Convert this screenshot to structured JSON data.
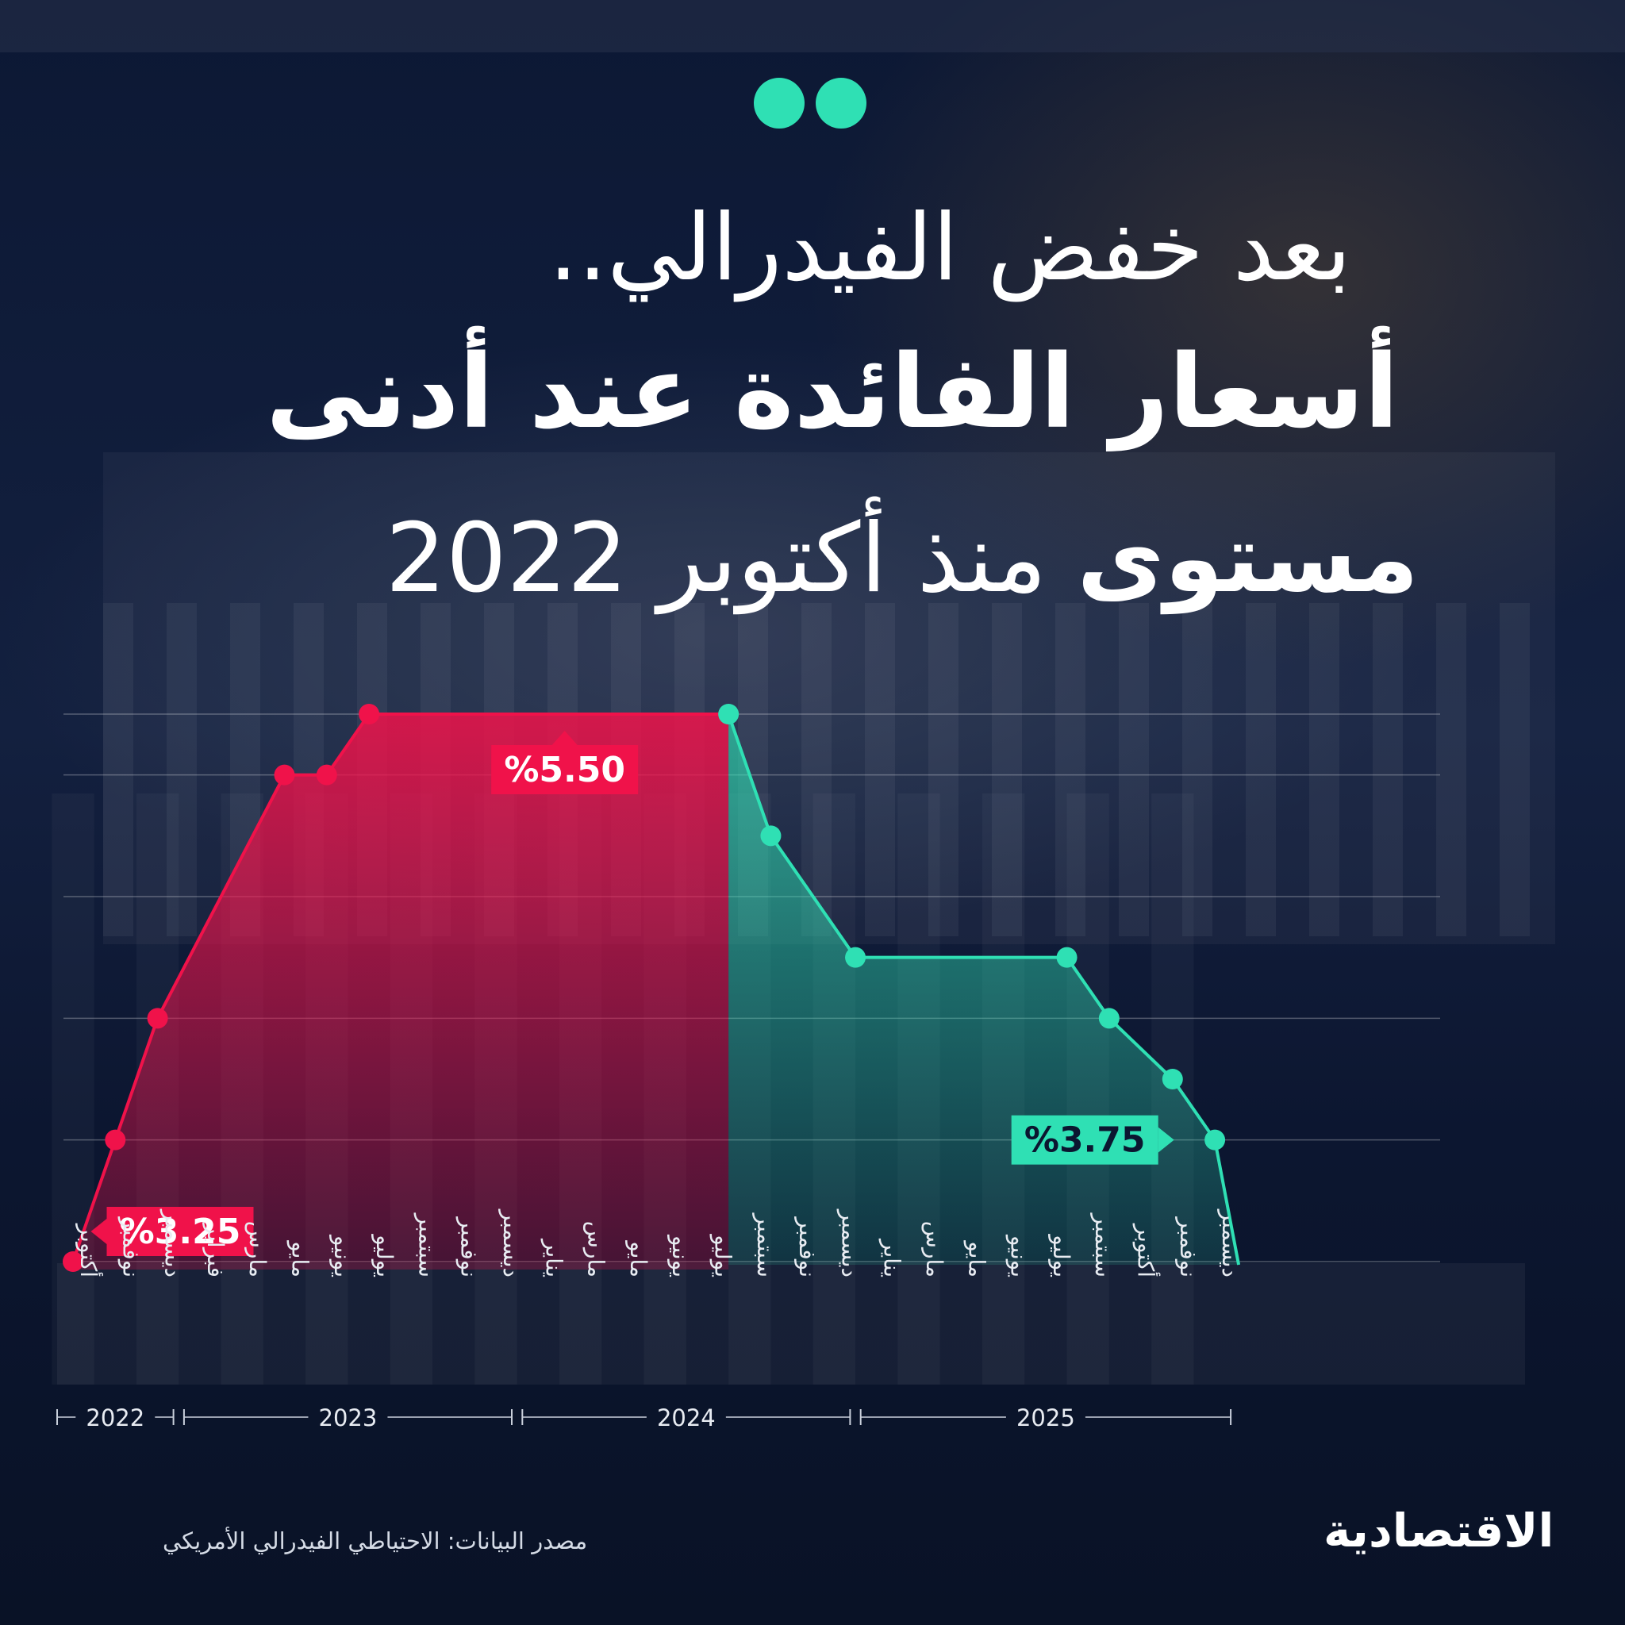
{
  "title": {
    "line1": "بعد خفض الفيدرالي..",
    "line2": "أسعار الفائدة عند أدنى",
    "line3_bold": "مستوى",
    "line3_rest": "منذ أكتوبر 2022"
  },
  "source": "مصدر البيانات: الاحتياطي الفيدرالي الأمريكي",
  "brand": "الاقتصادية",
  "colors": {
    "rise": "#f0124a",
    "fall": "#2fe0b4",
    "background": "#0b1630",
    "text": "#ffffff"
  },
  "chart_data": {
    "type": "area",
    "ylim": [
      3.25,
      5.5
    ],
    "grid": true,
    "months": [
      "أكتوبر",
      "نوفمبر",
      "ديسمبر",
      "فبراير",
      "مارس",
      "مايو",
      "يونيو",
      "يوليو",
      "سبتمبر",
      "نوفمبر",
      "ديسمبر",
      "يناير",
      "مارس",
      "مايو",
      "يونيو",
      "يوليو",
      "سبتمبر",
      "نوفمبر",
      "ديسمبر",
      "يناير",
      "مارس",
      "مايو",
      "يونيو",
      "يوليو",
      "سبتمبر",
      "أكتوبر",
      "نوفمبر",
      "ديسمبر"
    ],
    "years": [
      {
        "label": "2022",
        "from": 0,
        "to": 2
      },
      {
        "label": "2023",
        "from": 3,
        "to": 10
      },
      {
        "label": "2024",
        "from": 11,
        "to": 18
      },
      {
        "label": "2025",
        "from": 19,
        "to": 27
      }
    ],
    "rise_series": {
      "points": [
        {
          "i": 0,
          "y": 3.25
        },
        {
          "i": 1,
          "y": 3.75
        },
        {
          "i": 2,
          "y": 4.25
        },
        {
          "i": 5,
          "y": 5.25
        },
        {
          "i": 6,
          "y": 5.25
        },
        {
          "i": 7,
          "y": 5.5
        }
      ],
      "end": {
        "i": 15.5,
        "y": 5.5
      }
    },
    "fall_series": {
      "points": [
        {
          "i": 15.5,
          "y": 5.5
        },
        {
          "i": 16.5,
          "y": 5.0
        },
        {
          "i": 18.5,
          "y": 4.5
        },
        {
          "i": 23.5,
          "y": 4.5
        },
        {
          "i": 24.5,
          "y": 4.25
        },
        {
          "i": 26,
          "y": 4.0
        },
        {
          "i": 27,
          "y": 3.75
        }
      ]
    },
    "labels": [
      {
        "text": "%3.25",
        "i": 0,
        "y": 3.25,
        "color": "rise"
      },
      {
        "text": "%5.50",
        "i": 10.5,
        "y": 5.5,
        "color": "rise"
      },
      {
        "text": "%3.75",
        "i": 24.3,
        "y": 3.75,
        "color": "fall"
      }
    ]
  }
}
